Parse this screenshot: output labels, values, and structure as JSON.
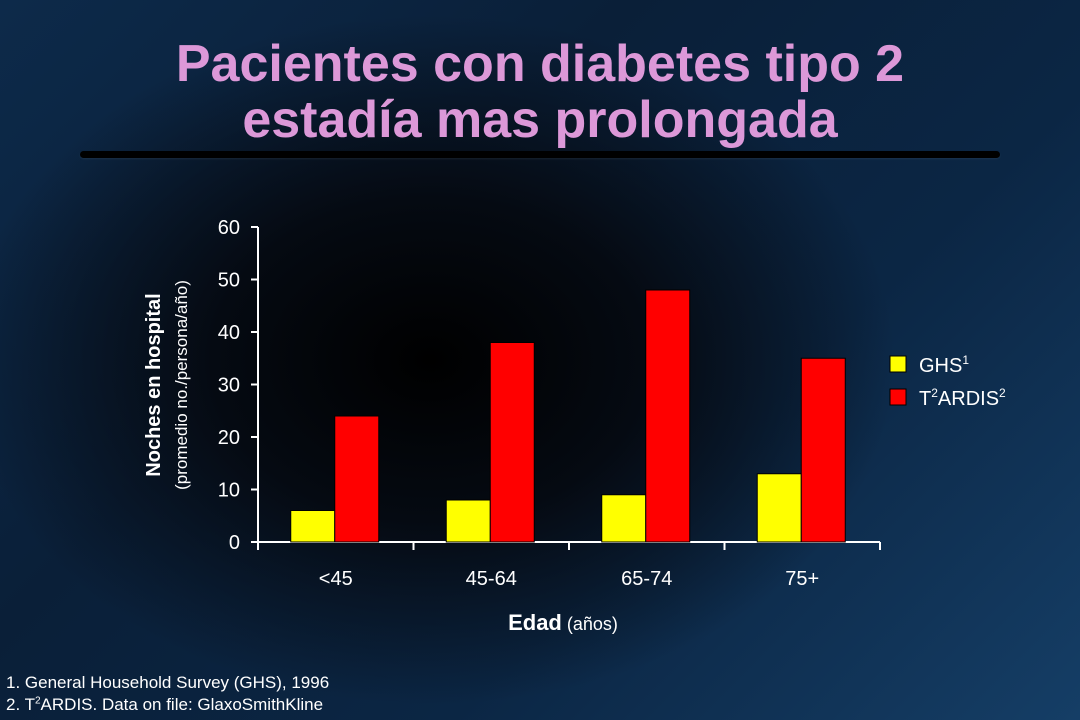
{
  "title": {
    "line1": "Pacientes con diabetes tipo 2",
    "line2": "estadía mas prolongada"
  },
  "chart_data": {
    "type": "bar",
    "categories": [
      "<45",
      "45-64",
      "65-74",
      "75+"
    ],
    "series": [
      {
        "name": "GHS",
        "sup": "1",
        "color": "#ffff00",
        "values": [
          6,
          8,
          9,
          13
        ]
      },
      {
        "name_prefix": "T",
        "prefix_sup": "2",
        "name": "ARDIS",
        "sup": "2",
        "color": "#ff0000",
        "values": [
          24,
          38,
          48,
          35
        ]
      }
    ],
    "ylim": [
      0,
      60
    ],
    "yticks": [
      0,
      10,
      20,
      30,
      40,
      50,
      60
    ],
    "ylabel": "Noches en hospital",
    "ylabel_sub": "(promedio no./persona/año)",
    "xlabel": "Edad",
    "xlabel_sub": "(años)",
    "legend_position": "right",
    "grid": false
  },
  "footnotes": {
    "note1": "1. General Household Survey (GHS), 1996",
    "note2_prefix": "2. T",
    "note2_sup": "2",
    "note2_rest": "ARDIS. Data on file: GlaxoSmithKline"
  }
}
